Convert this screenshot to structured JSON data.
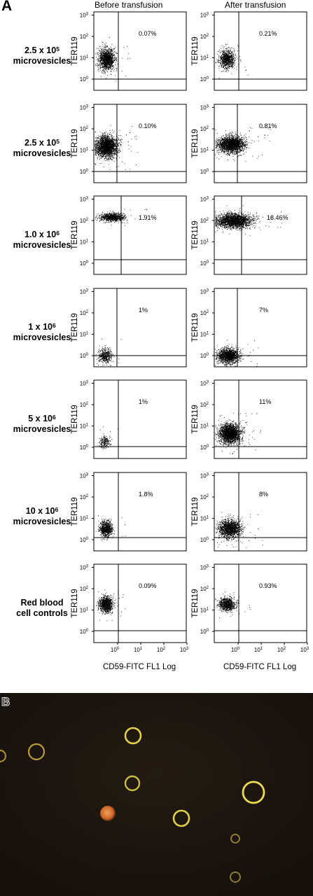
{
  "panel_a": {
    "letter": "A",
    "columns": [
      "Before transfusion",
      "After transfusion"
    ],
    "y_axis_label": "TER119",
    "x_axis_label": "CD59-FITC FL1 Log",
    "rows": [
      {
        "label_html": "2.5 x 10<sup>5</sup><br>microvesicles",
        "before": "0.07%",
        "after": "0.21%"
      },
      {
        "label_html": "2.5 x 10<sup>5</sup><br>microvesicles",
        "before": "0.10%",
        "after": "0.81%"
      },
      {
        "label_html": "1.0 x 10<sup>6</sup><br>microvesicles",
        "before": "1.91%",
        "after": "18.46%"
      },
      {
        "label_html": "1 x 10<sup>6</sup><br>microvesicles",
        "before": "1%",
        "after": "7%"
      },
      {
        "label_html": "5 x 10<sup>6</sup><br>microvesicles",
        "before": "1%",
        "after": "11%"
      },
      {
        "label_html": "10 x 10<sup>6</sup><br>microvesicles",
        "before": "1.8%",
        "after": "8%"
      },
      {
        "label_html": "Red blood<br>cell controls",
        "before": "0.09%",
        "after": "0.93%"
      }
    ]
  },
  "panel_b": {
    "letter": "B"
  },
  "chart_data": {
    "type": "scatter",
    "x_axis": {
      "label": "CD59-FITC FL1 Log",
      "scale": "log",
      "ticks": [
        "10⁰",
        "10¹",
        "10²",
        "10³"
      ]
    },
    "y_axis": {
      "label": "TER119",
      "scale": "log",
      "ticks": [
        "10⁰",
        "10¹",
        "10²",
        "10³"
      ]
    },
    "panels": [
      {
        "row": 1,
        "column": "Before transfusion",
        "upper_right_percent": "0.07%"
      },
      {
        "row": 1,
        "column": "After transfusion",
        "upper_right_percent": "0.21%"
      },
      {
        "row": 2,
        "column": "Before transfusion",
        "upper_right_percent": "0.10%"
      },
      {
        "row": 2,
        "column": "After transfusion",
        "upper_right_percent": "0.81%"
      },
      {
        "row": 3,
        "column": "Before transfusion",
        "upper_right_percent": "1.91%"
      },
      {
        "row": 3,
        "column": "After transfusion",
        "upper_right_percent": "18.46%"
      },
      {
        "row": 4,
        "column": "Before transfusion",
        "upper_right_percent": "1%"
      },
      {
        "row": 4,
        "column": "After transfusion",
        "upper_right_percent": "7%"
      },
      {
        "row": 5,
        "column": "Before transfusion",
        "upper_right_percent": "1%"
      },
      {
        "row": 5,
        "column": "After transfusion",
        "upper_right_percent": "11%"
      },
      {
        "row": 6,
        "column": "Before transfusion",
        "upper_right_percent": "1.8%"
      },
      {
        "row": 6,
        "column": "After transfusion",
        "upper_right_percent": "8%"
      },
      {
        "row": 7,
        "column": "Before transfusion",
        "upper_right_percent": "0.09%"
      },
      {
        "row": 7,
        "column": "After transfusion",
        "upper_right_percent": "0.93%"
      }
    ]
  }
}
